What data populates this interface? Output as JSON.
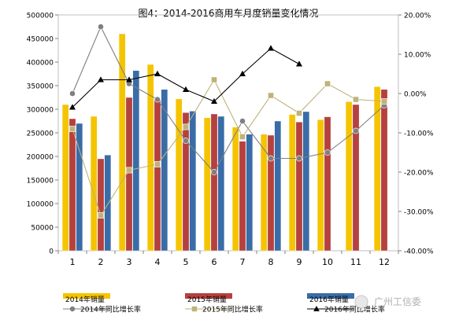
{
  "chart_data": {
    "type": "bar",
    "title": "图4：2014-2016商用车月度销量变化情况",
    "categories": [
      "1",
      "2",
      "3",
      "4",
      "5",
      "6",
      "7",
      "8",
      "9",
      "10",
      "11",
      "12"
    ],
    "y_left": {
      "min": 0,
      "max": 500000,
      "ticks": [
        "0",
        "50000",
        "100000",
        "150000",
        "200000",
        "250000",
        "300000",
        "350000",
        "400000",
        "450000",
        "500000"
      ]
    },
    "y_right": {
      "min": -40,
      "max": 20,
      "ticks": [
        "-40.00%",
        "-30.00%",
        "-20.00%",
        "-10.00%",
        "0.00%",
        "10.00%",
        "20.00%"
      ]
    },
    "bar_series": [
      {
        "name": "2014年销量",
        "color": "#F5C400",
        "values": [
          310000,
          285000,
          460000,
          395000,
          322000,
          282000,
          262000,
          247000,
          289000,
          278000,
          316000,
          348000
        ]
      },
      {
        "name": "2015年销量",
        "color": "#B5413F",
        "values": [
          280000,
          195000,
          325000,
          322000,
          293000,
          290000,
          232000,
          245000,
          273000,
          284000,
          310000,
          342000
        ]
      },
      {
        "name": "2016年销量",
        "color": "#3A6CA8",
        "values": [
          270000,
          203000,
          382000,
          342000,
          296000,
          285000,
          247000,
          275000,
          295000,
          null,
          null,
          null
        ]
      }
    ],
    "line_series": [
      {
        "name": "2014年同比增长率",
        "color": "#7F7F7F",
        "marker": "circle",
        "values": [
          0.0,
          17.0,
          2.5,
          -1.5,
          -12.0,
          -20.0,
          -7.0,
          -16.5,
          -16.5,
          -15.0,
          -9.5,
          -3.0
        ]
      },
      {
        "name": "2015年同比增长率",
        "color": "#BFB27A",
        "marker": "square",
        "values": [
          -9.0,
          -31.0,
          -19.5,
          -18.0,
          -8.5,
          3.5,
          -11.0,
          -0.5,
          -5.0,
          2.5,
          -1.5,
          -2.0
        ]
      },
      {
        "name": "2016年同比增长率",
        "color": "#000000",
        "marker": "triangle",
        "values": [
          -3.5,
          3.5,
          3.5,
          5.0,
          1.0,
          -2.0,
          5.0,
          11.5,
          7.5,
          null,
          null,
          null
        ]
      }
    ],
    "watermark": "广州工信委"
  }
}
